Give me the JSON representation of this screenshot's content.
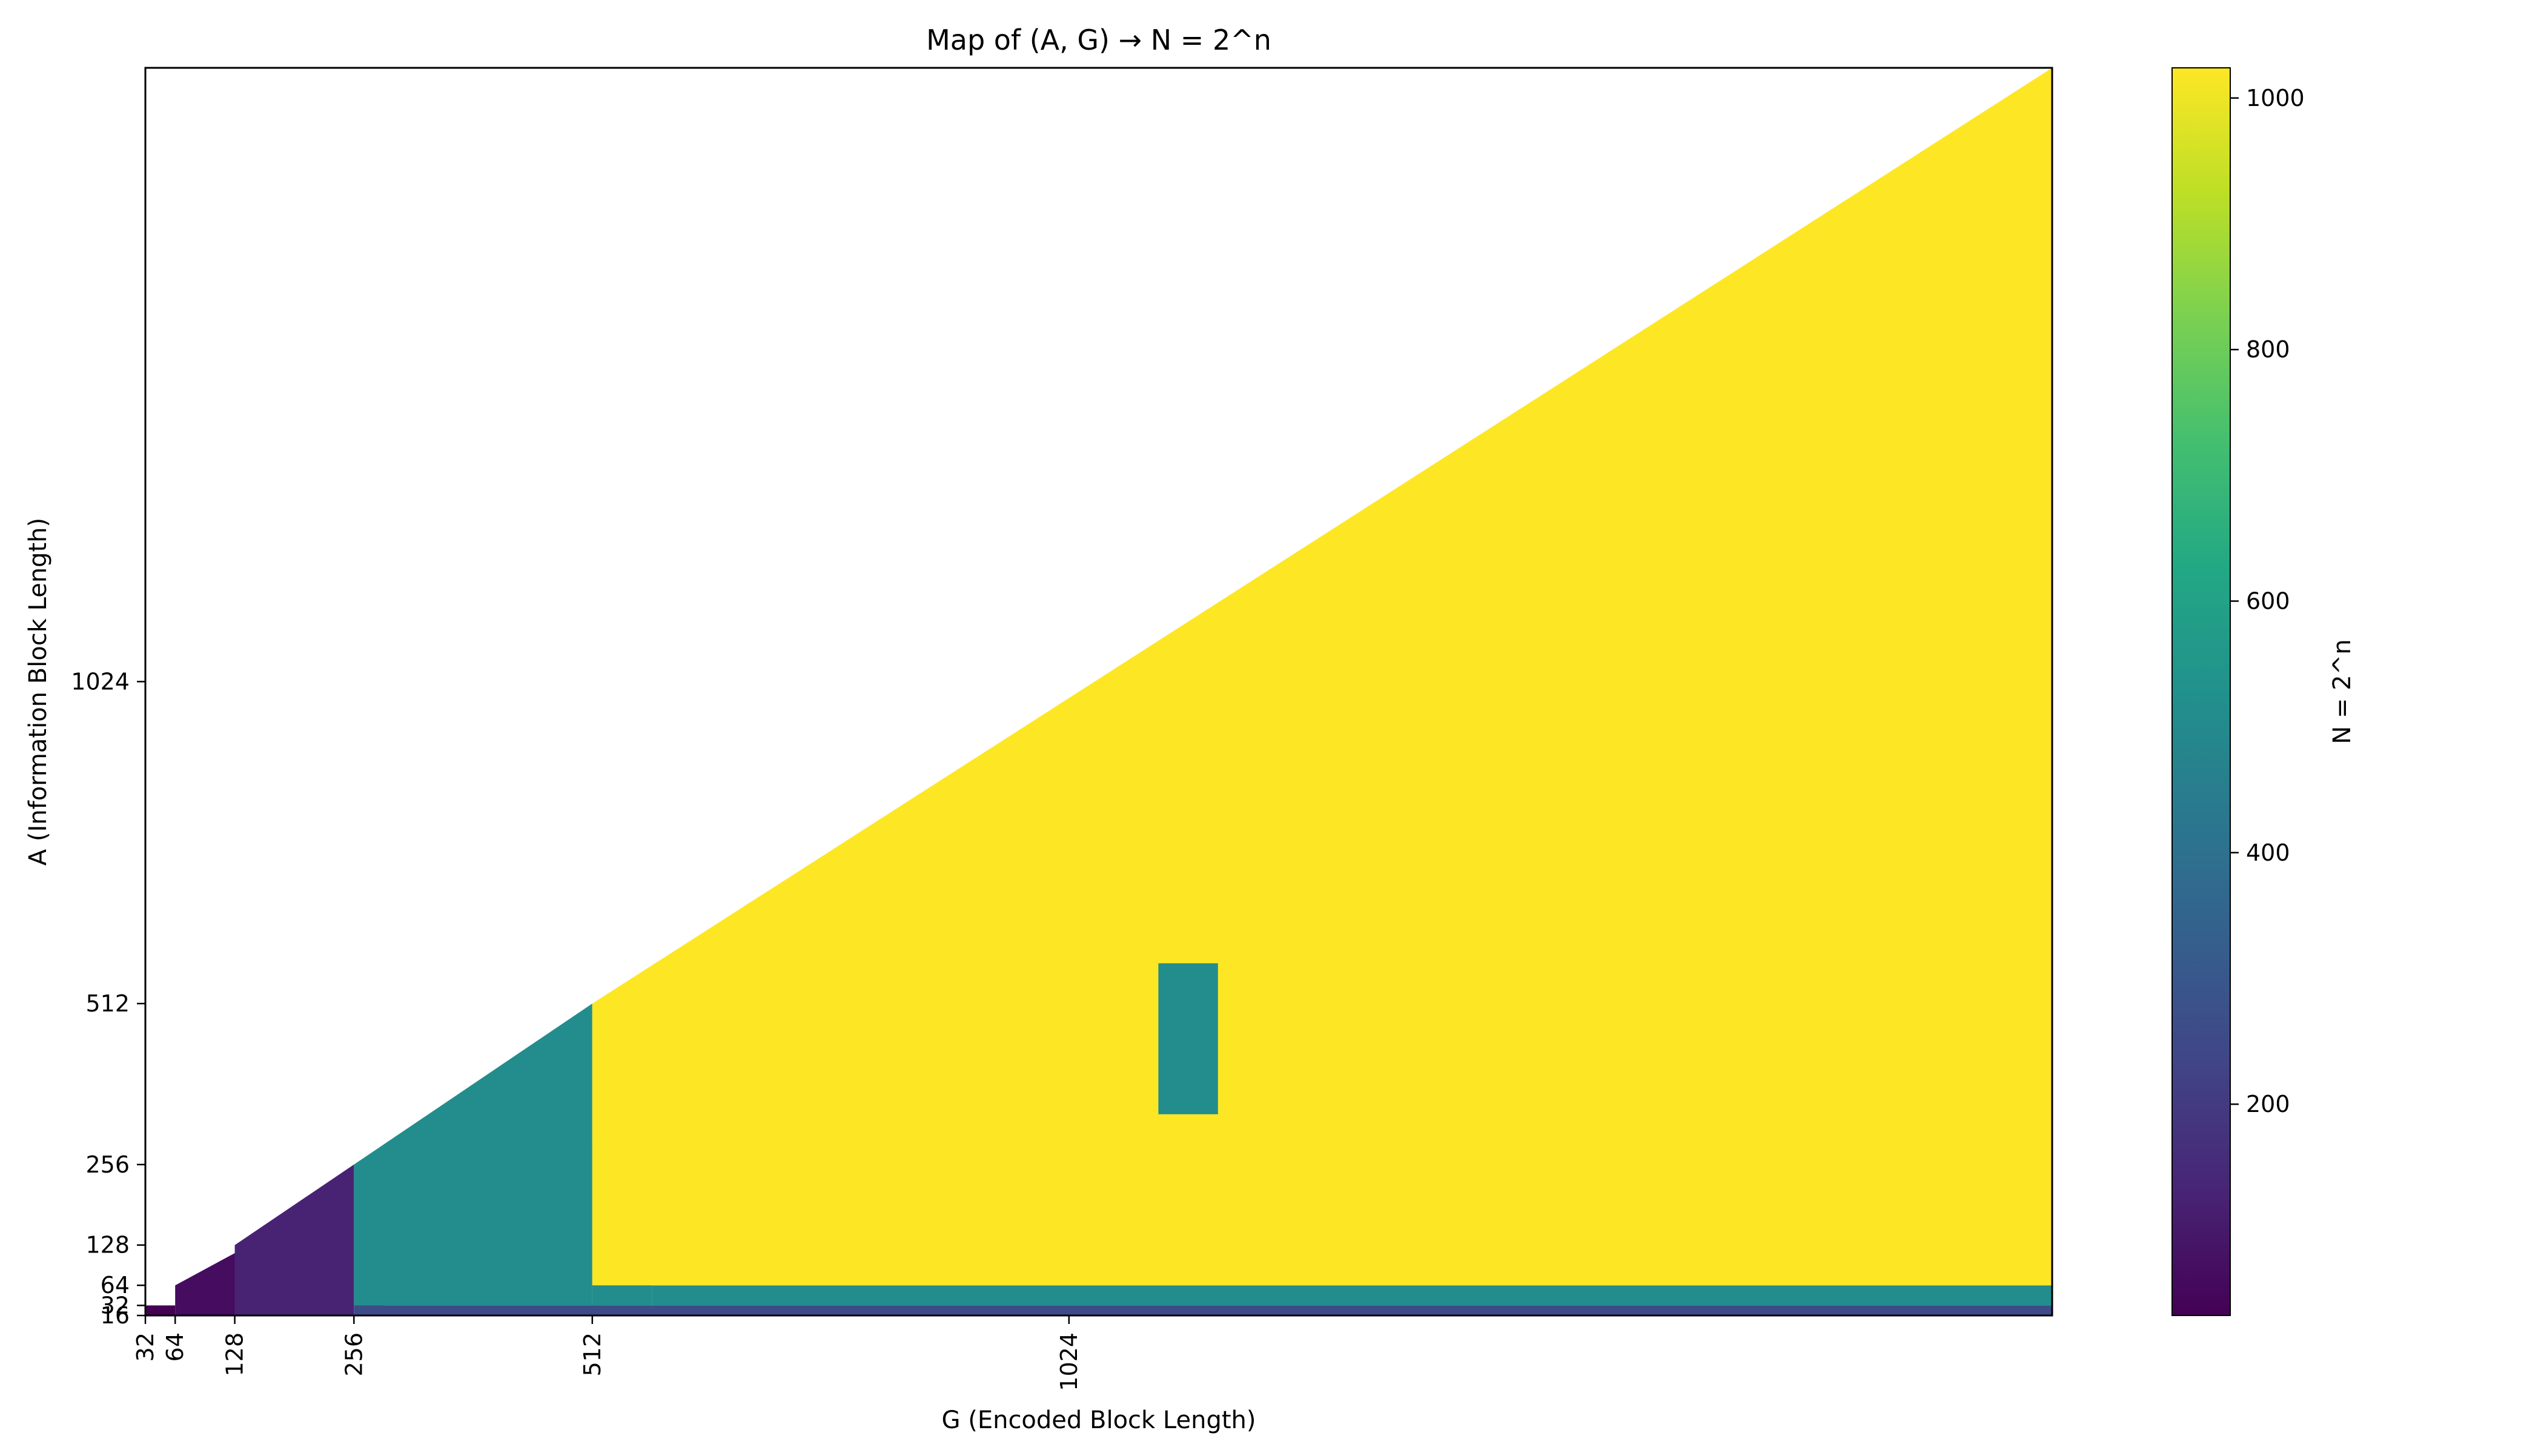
{
  "chart_data": {
    "type": "heatmap",
    "title": "Map of (A, G) → N = 2^n",
    "xlabel": "G (Encoded Block Length)",
    "ylabel": "A (Information Block Length)",
    "xlim": [
      32,
      2080
    ],
    "ylim": [
      16,
      2000
    ],
    "x_ticks": [
      32,
      64,
      128,
      256,
      512,
      1024
    ],
    "y_ticks": [
      16,
      32,
      64,
      128,
      256,
      512,
      1024
    ],
    "colormap": "viridis",
    "colorbar": {
      "label": "N = 2^n",
      "range": [
        32,
        1024
      ],
      "ticks": [
        200,
        400,
        600,
        800,
        1000
      ]
    },
    "constraint": "A ≤ G (cells with A > G are empty)",
    "regions": [
      {
        "N": 32,
        "G_range": [
          32,
          64
        ],
        "A_range": [
          16,
          32
        ]
      },
      {
        "N": 64,
        "G_range": [
          64,
          144
        ],
        "A_range": [
          16,
          128
        ]
      },
      {
        "N": 128,
        "G_range": [
          128,
          256
        ],
        "A_range": [
          16,
          256
        ]
      },
      {
        "N": 256,
        "G_range": [
          256,
          288
        ],
        "A_range": [
          16,
          256
        ]
      },
      {
        "N": 256,
        "G_range": [
          288,
          2080
        ],
        "A_range": [
          16,
          32
        ]
      },
      {
        "N": 512,
        "G_range": [
          256,
          512
        ],
        "A_range": [
          32,
          512
        ]
      },
      {
        "N": 512,
        "G_range": [
          512,
          576
        ],
        "A_range": [
          32,
          288
        ]
      },
      {
        "N": 512,
        "G_range": [
          576,
          2080
        ],
        "A_range": [
          32,
          64
        ]
      },
      {
        "N": 1024,
        "G_range": [
          512,
          2080
        ],
        "A_range": [
          64,
          2000
        ]
      },
      {
        "N": 512,
        "G_range": [
          1120,
          1184
        ],
        "A_range": [
          336,
          576
        ]
      }
    ]
  }
}
